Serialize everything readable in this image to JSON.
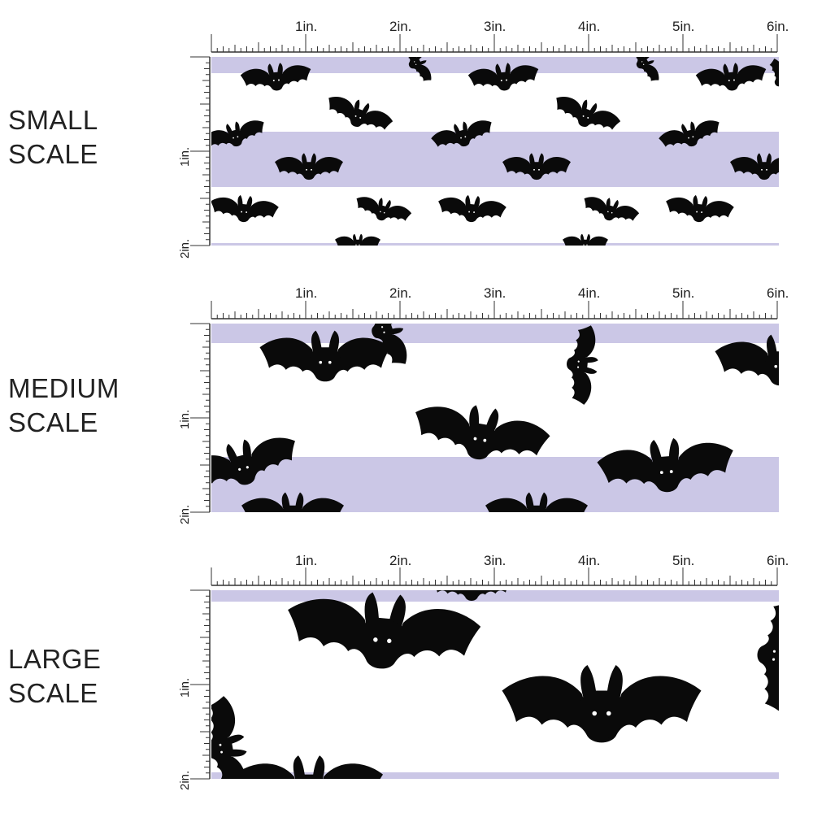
{
  "colors": {
    "background": "#ffffff",
    "stripe": "#cbc7e6",
    "bat": "#0a0a0a",
    "eye": "#ffffff",
    "ruler": "#333333"
  },
  "ruler": {
    "horizontal_labels": [
      "1in.",
      "2in.",
      "3in.",
      "4in.",
      "5in.",
      "6in."
    ],
    "vertical_labels": [
      "1in.",
      "2in."
    ]
  },
  "panels": [
    {
      "id": "small",
      "label_line1": "SMALL",
      "label_line2": "SCALE",
      "scale": 1
    },
    {
      "id": "medium",
      "label_line1": "MEDIUM",
      "label_line2": "SCALE",
      "scale": 2
    },
    {
      "id": "large",
      "label_line1": "LARGE",
      "label_line2": "SCALE",
      "scale": 3
    }
  ],
  "pattern_icon": "bat-icon"
}
